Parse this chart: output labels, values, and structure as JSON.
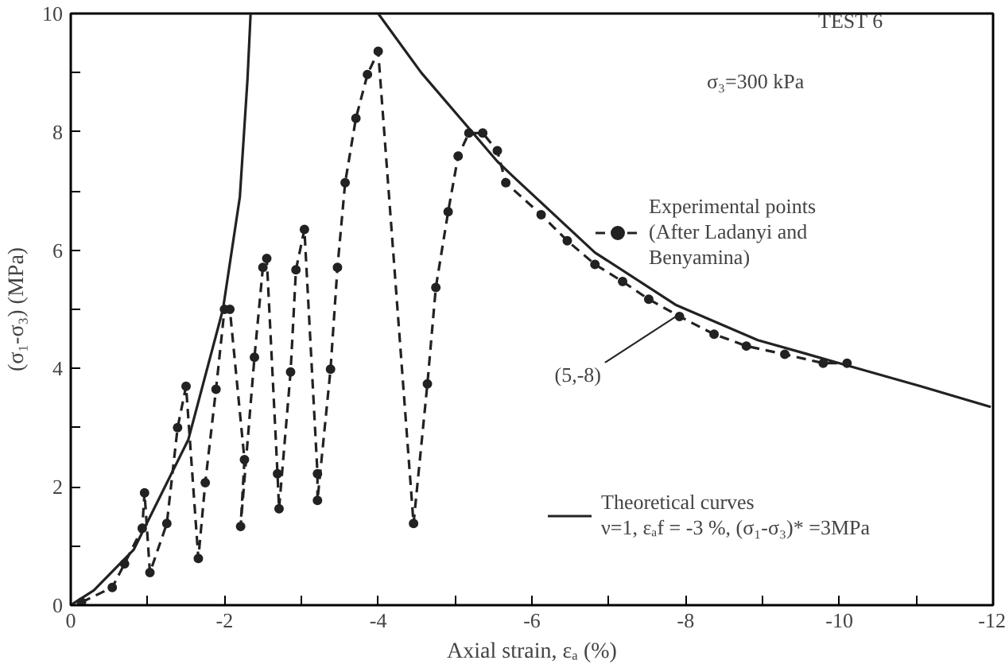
{
  "chart_data": {
    "type": "line",
    "xlabel": "Axial strain, εₐ (%)",
    "ylabel": "(σ₁-σ₃) (MPa)",
    "annotations": [
      "TEST 6",
      "σ₃=300 kPa",
      {
        "text": "(5,-8)",
        "x": -7.9,
        "y": 4.9
      }
    ],
    "xlim": [
      0,
      -12
    ],
    "xticks": [
      0,
      {
        "value": -1,
        "label": null
      },
      -2,
      {
        "value": -3,
        "label": null
      },
      -4,
      {
        "value": -5,
        "label": null
      },
      -6,
      {
        "value": -7,
        "label": null
      },
      -8,
      {
        "value": -9,
        "label": null
      },
      -10,
      {
        "value": -11,
        "label": null
      },
      -12
    ],
    "ylim": [
      0,
      10
    ],
    "yticks": [
      0,
      {
        "value": 1,
        "label": null
      },
      2,
      {
        "value": 3,
        "label": null
      },
      4,
      {
        "value": 5,
        "label": null
      },
      6,
      {
        "value": 7,
        "label": null
      },
      8,
      {
        "value": 9,
        "label": null
      },
      10
    ],
    "grid": false,
    "legend": "right",
    "series": [
      {
        "name": "Experimental points\n(After Ladanyi and\nBenyamina)",
        "color": "#222222",
        "marker": "circle",
        "line_style": "dashed",
        "x": [
          -0.14,
          -0.54,
          -0.7,
          -0.93,
          -0.96,
          -1.03,
          -1.25,
          -1.39,
          -1.5,
          -1.66,
          -1.75,
          -1.89,
          -2.0,
          -2.07,
          -2.26,
          -2.21,
          -2.39,
          -2.5,
          -2.55,
          -2.69,
          -2.71,
          -2.86,
          -2.93,
          -3.04,
          -3.21,
          -3.21,
          -3.38,
          -3.47,
          -3.57,
          -3.71,
          -3.86,
          -4.0,
          -4.46,
          -4.64,
          -4.75,
          -4.91,
          -5.04,
          -5.18,
          -5.36,
          -5.55,
          -5.66,
          -6.12,
          -6.46,
          -6.82,
          -7.18,
          -7.52,
          -7.92,
          -8.37,
          -8.79,
          -9.29,
          -9.79,
          -10.1
        ],
        "values": [
          0.05,
          0.3,
          0.7,
          1.3,
          1.9,
          0.55,
          1.38,
          3.0,
          3.7,
          0.79,
          2.07,
          3.65,
          5.0,
          5.0,
          2.46,
          1.33,
          4.19,
          5.71,
          5.86,
          2.22,
          1.63,
          3.94,
          5.67,
          6.35,
          2.22,
          1.77,
          3.99,
          5.71,
          7.14,
          8.23,
          8.97,
          9.36,
          1.38,
          3.74,
          5.37,
          6.65,
          7.59,
          7.98,
          7.98,
          7.68,
          7.14,
          6.6,
          6.16,
          5.76,
          5.47,
          5.17,
          4.88,
          4.58,
          4.38,
          4.24,
          4.09,
          4.09
        ]
      },
      {
        "name": "Theoretical curves\nν=1, εₐf = -3 %, (σ₁-σ₃)* =3MPa",
        "color": "#222222",
        "marker": "none",
        "line_style": "solid",
        "x": [
          0,
          -0.3,
          -0.82,
          -1.53,
          -1.98,
          -2.2,
          -2.3,
          -2.34
        ],
        "values": [
          0,
          0.25,
          0.94,
          2.8,
          5.0,
          6.9,
          8.9,
          10
        ]
      },
      {
        "color": "#222222",
        "marker": "none",
        "line_style": "solid",
        "x": [
          -4.0,
          -4.56,
          -5.55,
          -5.76,
          -6.82,
          -7.88,
          -8.94,
          -10.0,
          -11.06,
          -11.97
        ],
        "values": [
          10,
          9.0,
          7.5,
          7.24,
          5.96,
          5.07,
          4.48,
          4.09,
          3.7,
          3.35
        ]
      }
    ]
  }
}
